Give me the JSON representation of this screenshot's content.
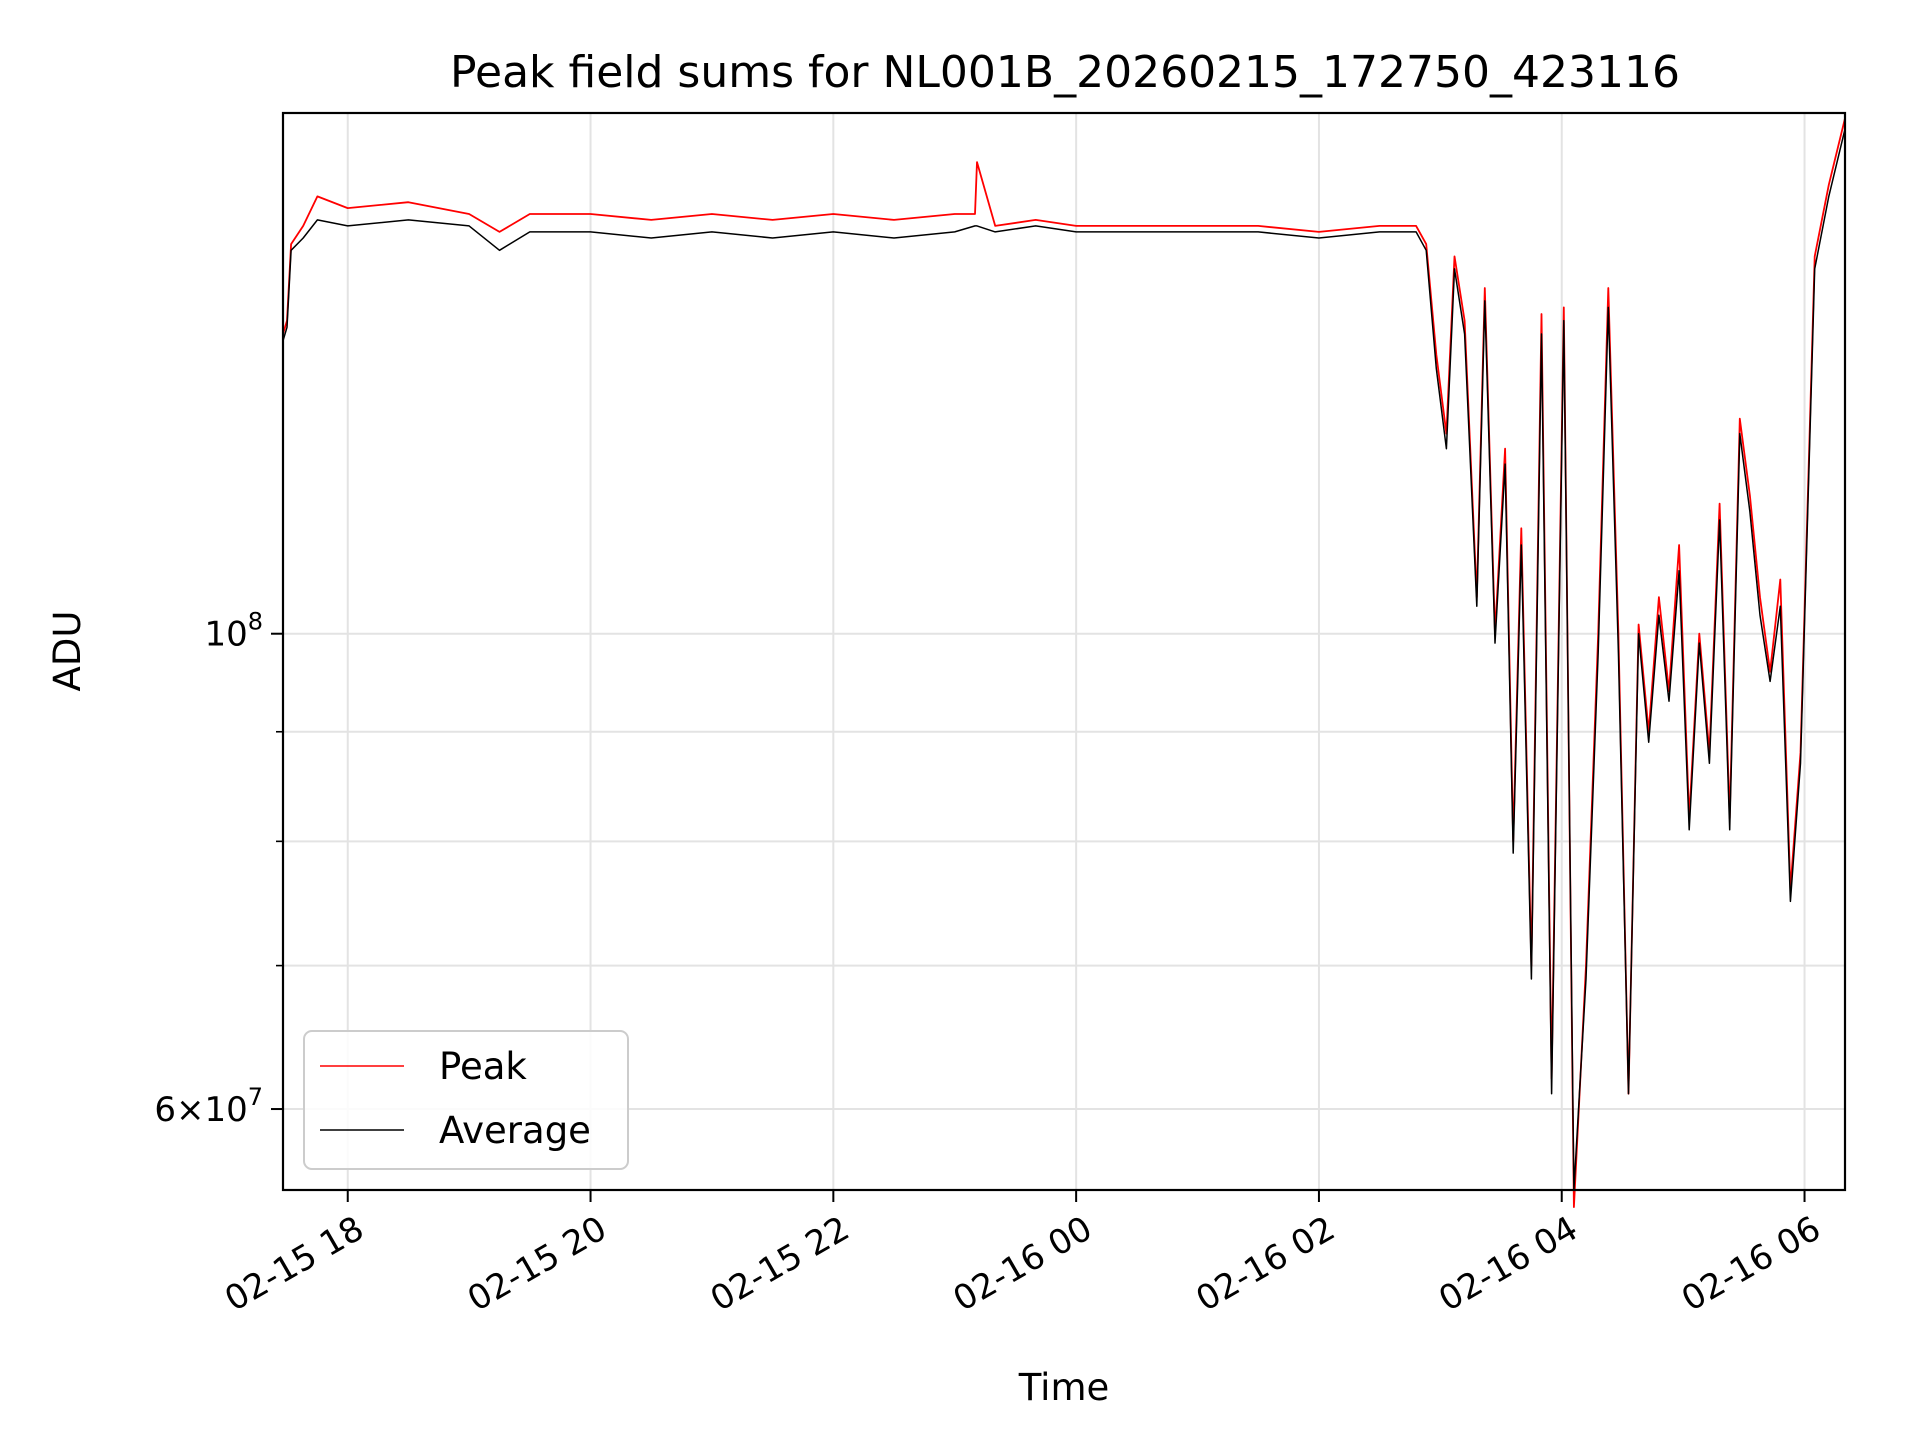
{
  "chart_data": {
    "type": "line",
    "title": "Peak field sums for NL001B_20260215_172750_423116",
    "xlabel": "Time",
    "ylabel": "ADU",
    "yscale": "log",
    "ylim": [
      55000000,
      175000000
    ],
    "xlim": [
      "2026-02-15 17:28",
      "2026-02-16 06:20"
    ],
    "grid": true,
    "legend_position": "lower-left",
    "x_ticks": [
      {
        "t": "2026-02-15 18:00",
        "label": "02-15 18"
      },
      {
        "t": "2026-02-15 20:00",
        "label": "02-15 20"
      },
      {
        "t": "2026-02-15 22:00",
        "label": "02-15 22"
      },
      {
        "t": "2026-02-16 00:00",
        "label": "02-16 00"
      },
      {
        "t": "2026-02-16 02:00",
        "label": "02-16 02"
      },
      {
        "t": "2026-02-16 04:00",
        "label": "02-16 04"
      },
      {
        "t": "2026-02-16 06:00",
        "label": "02-16 06"
      }
    ],
    "y_ticks": [
      {
        "value": 100000000,
        "base": "10",
        "exp": "8",
        "style": "power"
      },
      {
        "value": 60000000,
        "mant": "6",
        "base": "10",
        "exp": "7",
        "style": "sci"
      }
    ],
    "y_minor_gridlines": [
      70000000,
      80000000,
      90000000
    ],
    "series": [
      {
        "name": "Peak",
        "color": "#ff0000",
        "x": [
          "2026-02-15 17:28",
          "2026-02-15 17:30",
          "2026-02-15 17:32",
          "2026-02-15 17:38",
          "2026-02-15 17:45",
          "2026-02-15 18:00",
          "2026-02-15 18:30",
          "2026-02-15 19:00",
          "2026-02-15 19:15",
          "2026-02-15 19:30",
          "2026-02-15 20:00",
          "2026-02-15 20:30",
          "2026-02-15 21:00",
          "2026-02-15 21:30",
          "2026-02-15 22:00",
          "2026-02-15 22:30",
          "2026-02-15 23:00",
          "2026-02-15 23:10",
          "2026-02-15 23:11",
          "2026-02-15 23:20",
          "2026-02-15 23:40",
          "2026-02-16 00:00",
          "2026-02-16 00:30",
          "2026-02-16 01:00",
          "2026-02-16 01:30",
          "2026-02-16 02:00",
          "2026-02-16 02:30",
          "2026-02-16 02:48",
          "2026-02-16 02:53",
          "2026-02-16 02:58",
          "2026-02-16 03:03",
          "2026-02-16 03:07",
          "2026-02-16 03:12",
          "2026-02-16 03:18",
          "2026-02-16 03:22",
          "2026-02-16 03:27",
          "2026-02-16 03:32",
          "2026-02-16 03:36",
          "2026-02-16 03:40",
          "2026-02-16 03:45",
          "2026-02-16 03:50",
          "2026-02-16 03:55",
          "2026-02-16 04:01",
          "2026-02-16 04:06",
          "2026-02-16 04:12",
          "2026-02-16 04:18",
          "2026-02-16 04:23",
          "2026-02-16 04:28",
          "2026-02-16 04:33",
          "2026-02-16 04:38",
          "2026-02-16 04:43",
          "2026-02-16 04:48",
          "2026-02-16 04:53",
          "2026-02-16 04:58",
          "2026-02-16 05:03",
          "2026-02-16 05:08",
          "2026-02-16 05:13",
          "2026-02-16 05:18",
          "2026-02-16 05:23",
          "2026-02-16 05:28",
          "2026-02-16 05:33",
          "2026-02-16 05:38",
          "2026-02-16 05:43",
          "2026-02-16 05:48",
          "2026-02-16 05:53",
          "2026-02-16 05:58",
          "2026-02-16 06:05",
          "2026-02-16 06:12",
          "2026-02-16 06:20"
        ],
        "y": [
          138000000,
          140000000,
          152000000,
          155000000,
          160000000,
          158000000,
          159000000,
          157000000,
          154000000,
          157000000,
          157000000,
          156000000,
          157000000,
          156000000,
          157000000,
          156000000,
          157000000,
          157000000,
          166000000,
          155000000,
          156000000,
          155000000,
          155000000,
          155000000,
          155000000,
          154000000,
          155000000,
          155000000,
          152000000,
          135000000,
          124000000,
          150000000,
          140000000,
          104000000,
          145000000,
          100000000,
          122000000,
          80000000,
          112000000,
          70000000,
          141000000,
          62000000,
          142000000,
          54000000,
          70000000,
          100000000,
          145000000,
          100000000,
          61000000,
          101000000,
          90000000,
          104000000,
          94000000,
          110000000,
          82000000,
          100000000,
          88000000,
          115000000,
          82000000,
          126000000,
          116000000,
          104000000,
          96000000,
          106000000,
          76000000,
          88000000,
          150000000,
          162000000,
          174000000
        ]
      },
      {
        "name": "Average",
        "color": "#000000",
        "x": [
          "2026-02-15 17:28",
          "2026-02-15 17:30",
          "2026-02-15 17:32",
          "2026-02-15 17:38",
          "2026-02-15 17:45",
          "2026-02-15 18:00",
          "2026-02-15 18:30",
          "2026-02-15 19:00",
          "2026-02-15 19:15",
          "2026-02-15 19:30",
          "2026-02-15 20:00",
          "2026-02-15 20:30",
          "2026-02-15 21:00",
          "2026-02-15 21:30",
          "2026-02-15 22:00",
          "2026-02-15 22:30",
          "2026-02-15 23:00",
          "2026-02-15 23:10",
          "2026-02-15 23:11",
          "2026-02-15 23:20",
          "2026-02-15 23:40",
          "2026-02-16 00:00",
          "2026-02-16 00:30",
          "2026-02-16 01:00",
          "2026-02-16 01:30",
          "2026-02-16 02:00",
          "2026-02-16 02:30",
          "2026-02-16 02:48",
          "2026-02-16 02:53",
          "2026-02-16 02:58",
          "2026-02-16 03:03",
          "2026-02-16 03:07",
          "2026-02-16 03:12",
          "2026-02-16 03:18",
          "2026-02-16 03:22",
          "2026-02-16 03:27",
          "2026-02-16 03:32",
          "2026-02-16 03:36",
          "2026-02-16 03:40",
          "2026-02-16 03:45",
          "2026-02-16 03:50",
          "2026-02-16 03:55",
          "2026-02-16 04:01",
          "2026-02-16 04:06",
          "2026-02-16 04:12",
          "2026-02-16 04:18",
          "2026-02-16 04:23",
          "2026-02-16 04:28",
          "2026-02-16 04:33",
          "2026-02-16 04:38",
          "2026-02-16 04:43",
          "2026-02-16 04:48",
          "2026-02-16 04:53",
          "2026-02-16 04:58",
          "2026-02-16 05:03",
          "2026-02-16 05:08",
          "2026-02-16 05:13",
          "2026-02-16 05:18",
          "2026-02-16 05:23",
          "2026-02-16 05:28",
          "2026-02-16 05:33",
          "2026-02-16 05:38",
          "2026-02-16 05:43",
          "2026-02-16 05:48",
          "2026-02-16 05:53",
          "2026-02-16 05:58",
          "2026-02-16 06:05",
          "2026-02-16 06:12",
          "2026-02-16 06:20"
        ],
        "y": [
          137000000,
          139000000,
          151000000,
          153000000,
          156000000,
          155000000,
          156000000,
          155000000,
          151000000,
          154000000,
          154000000,
          153000000,
          154000000,
          153000000,
          154000000,
          153000000,
          154000000,
          155000000,
          155000000,
          154000000,
          155000000,
          154000000,
          154000000,
          154000000,
          154000000,
          153000000,
          154000000,
          154000000,
          151000000,
          133000000,
          122000000,
          148000000,
          138000000,
          103000000,
          143000000,
          99000000,
          120000000,
          79000000,
          110000000,
          69000000,
          138000000,
          61000000,
          140000000,
          55000000,
          69000000,
          98000000,
          142000000,
          98000000,
          61000000,
          100000000,
          89000000,
          102000000,
          93000000,
          107000000,
          81000000,
          99000000,
          87000000,
          113000000,
          81000000,
          124000000,
          114000000,
          102000000,
          95000000,
          103000000,
          75000000,
          87000000,
          148000000,
          160000000,
          172000000
        ]
      }
    ]
  }
}
